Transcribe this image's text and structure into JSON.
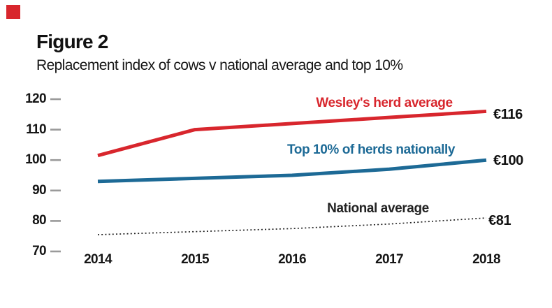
{
  "page": {
    "background": "#ffffff",
    "marker_color": "#d8262d",
    "tick_color": "#9a9a9a",
    "text_color": "#151515"
  },
  "figure": {
    "label": "Figure 2",
    "title": "Replacement index of cows v national average and top 10%"
  },
  "chart_data": {
    "type": "line",
    "x": [
      2014,
      2015,
      2016,
      2017,
      2018
    ],
    "xlabel": "",
    "ylabel": "",
    "ylim": [
      70,
      120
    ],
    "yticks": [
      120,
      110,
      100,
      90,
      80,
      70
    ],
    "grid": false,
    "legend": "inline-labels",
    "series": [
      {
        "name": "Wesley's herd average",
        "color": "#d8262d",
        "style": "solid",
        "width": 5,
        "values": [
          101.5,
          110,
          112,
          114,
          116
        ],
        "end_label": "€116"
      },
      {
        "name": "Top 10% of herds nationally",
        "color": "#1d6a96",
        "style": "solid",
        "width": 5,
        "values": [
          93,
          94,
          95,
          97,
          100
        ],
        "end_label": "€100"
      },
      {
        "name": "National average",
        "color": "#222222",
        "style": "dotted",
        "width": 1.7,
        "values": [
          75.5,
          76.5,
          77.5,
          79,
          81
        ],
        "end_label": "€81"
      }
    ]
  }
}
